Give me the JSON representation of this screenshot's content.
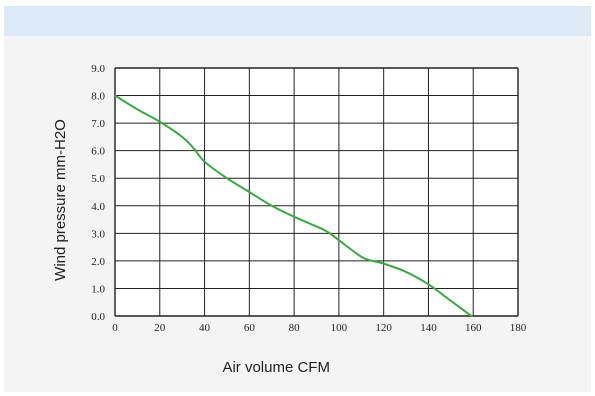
{
  "colors": {
    "band": "#dbeaf6",
    "panel": "#f4f4f4",
    "plot_bg": "#ffffff",
    "grid": "#222222",
    "curve": "#3aa845"
  },
  "chart_data": {
    "type": "line",
    "xlabel": "Air volume CFM",
    "ylabel": "Wind   pressure   mm-H2O",
    "xlim": [
      0,
      180
    ],
    "ylim": [
      0,
      9
    ],
    "x_ticks": [
      "0",
      "20",
      "40",
      "60",
      "80",
      "100",
      "120",
      "140",
      "160",
      "180"
    ],
    "y_ticks": [
      "0.0",
      "1.0",
      "2.0",
      "3.0",
      "4.0",
      "5.0",
      "6.0",
      "7.0",
      "8.0",
      "9.0"
    ],
    "grid": true,
    "series": [
      {
        "x": [
          0,
          10,
          20,
          30,
          35,
          40,
          50,
          60,
          70,
          80,
          90,
          95,
          100,
          110,
          115,
          120,
          130,
          140,
          150,
          160,
          163
        ],
        "y": [
          8.0,
          7.5,
          7.05,
          6.5,
          6.1,
          5.6,
          5.0,
          4.5,
          4.0,
          3.6,
          3.25,
          3.05,
          2.75,
          2.15,
          2.0,
          1.9,
          1.6,
          1.15,
          0.55,
          -0.05,
          -0.25
        ]
      }
    ]
  }
}
